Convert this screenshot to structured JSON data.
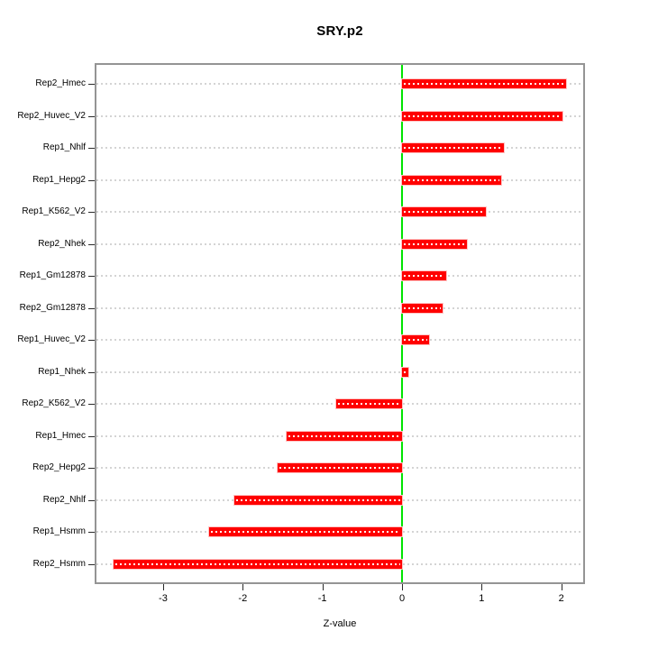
{
  "title": "SRY.p2",
  "chart_data": {
    "type": "bar",
    "orientation": "horizontal",
    "title": "SRY.p2",
    "xlabel": "Z-value",
    "ylabel": "",
    "categories": [
      "Rep2_Hmec",
      "Rep2_Huvec_V2",
      "Rep1_Nhlf",
      "Rep1_Hepg2",
      "Rep1_K562_V2",
      "Rep2_Nhek",
      "Rep1_Gm12878",
      "Rep2_Gm12878",
      "Rep1_Huvec_V2",
      "Rep1_Nhek",
      "Rep2_K562_V2",
      "Rep1_Hmec",
      "Rep2_Hepg2",
      "Rep2_Nhlf",
      "Rep1_Hsmm",
      "Rep2_Hsmm"
    ],
    "values": [
      2.06,
      2.02,
      1.28,
      1.25,
      1.05,
      0.82,
      0.55,
      0.51,
      0.34,
      0.08,
      -0.83,
      -1.45,
      -1.56,
      -2.11,
      -2.42,
      -3.62
    ],
    "x_ticks": [
      -3,
      -2,
      -1,
      0,
      1,
      2
    ],
    "xlim": [
      -3.85,
      2.29
    ],
    "grid": "per-row dotted line",
    "legend": "none",
    "colors": {
      "bar": "#ff0000",
      "bar_center_dots": "#ffffff",
      "zero_reference_line": "#00e400",
      "row_grid_dotted": "#d4d4d4",
      "plot_border": "#949494",
      "text": "#000000"
    }
  }
}
